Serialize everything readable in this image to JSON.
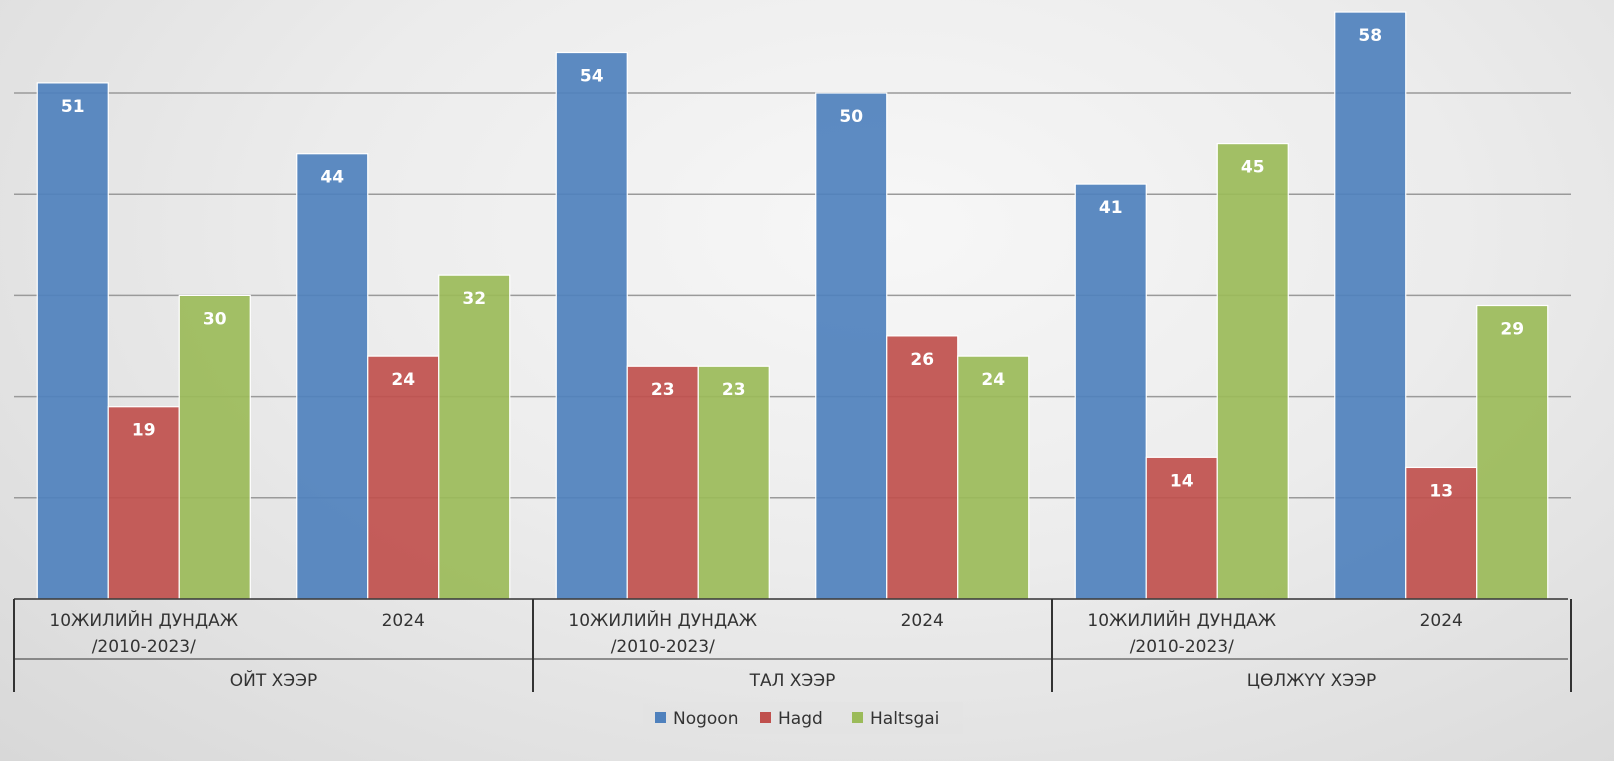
{
  "chart_data": {
    "type": "bar",
    "groups": [
      {
        "name": "ОЙТ ХЭЭР",
        "categories": [
          "10ЖИЛИЙН ДУНДАЖ\n/2010-2023/",
          "2024"
        ]
      },
      {
        "name": "ТАЛ ХЭЭР",
        "categories": [
          "10ЖИЛИЙН ДУНДАЖ\n/2010-2023/",
          "2024"
        ]
      },
      {
        "name": "ЦӨЛЖҮҮ ХЭЭР",
        "categories": [
          "10ЖИЛИЙН ДУНДАЖ\n/2010-2023/",
          "2024"
        ]
      }
    ],
    "series": [
      {
        "name": "Nogoon",
        "color": "#4f81bd",
        "values": [
          51,
          44,
          54,
          50,
          41,
          58
        ]
      },
      {
        "name": "Hagd",
        "color": "#c0504d",
        "values": [
          19,
          24,
          23,
          26,
          14,
          13
        ]
      },
      {
        "name": "Haltsgai",
        "color": "#9bbb59",
        "values": [
          30,
          32,
          23,
          24,
          45,
          29
        ]
      }
    ],
    "ylim": [
      0,
      60
    ],
    "gridlines": [
      10,
      20,
      30,
      40,
      50
    ],
    "grid": true,
    "legend_position": "bottom",
    "data_labels": true
  }
}
